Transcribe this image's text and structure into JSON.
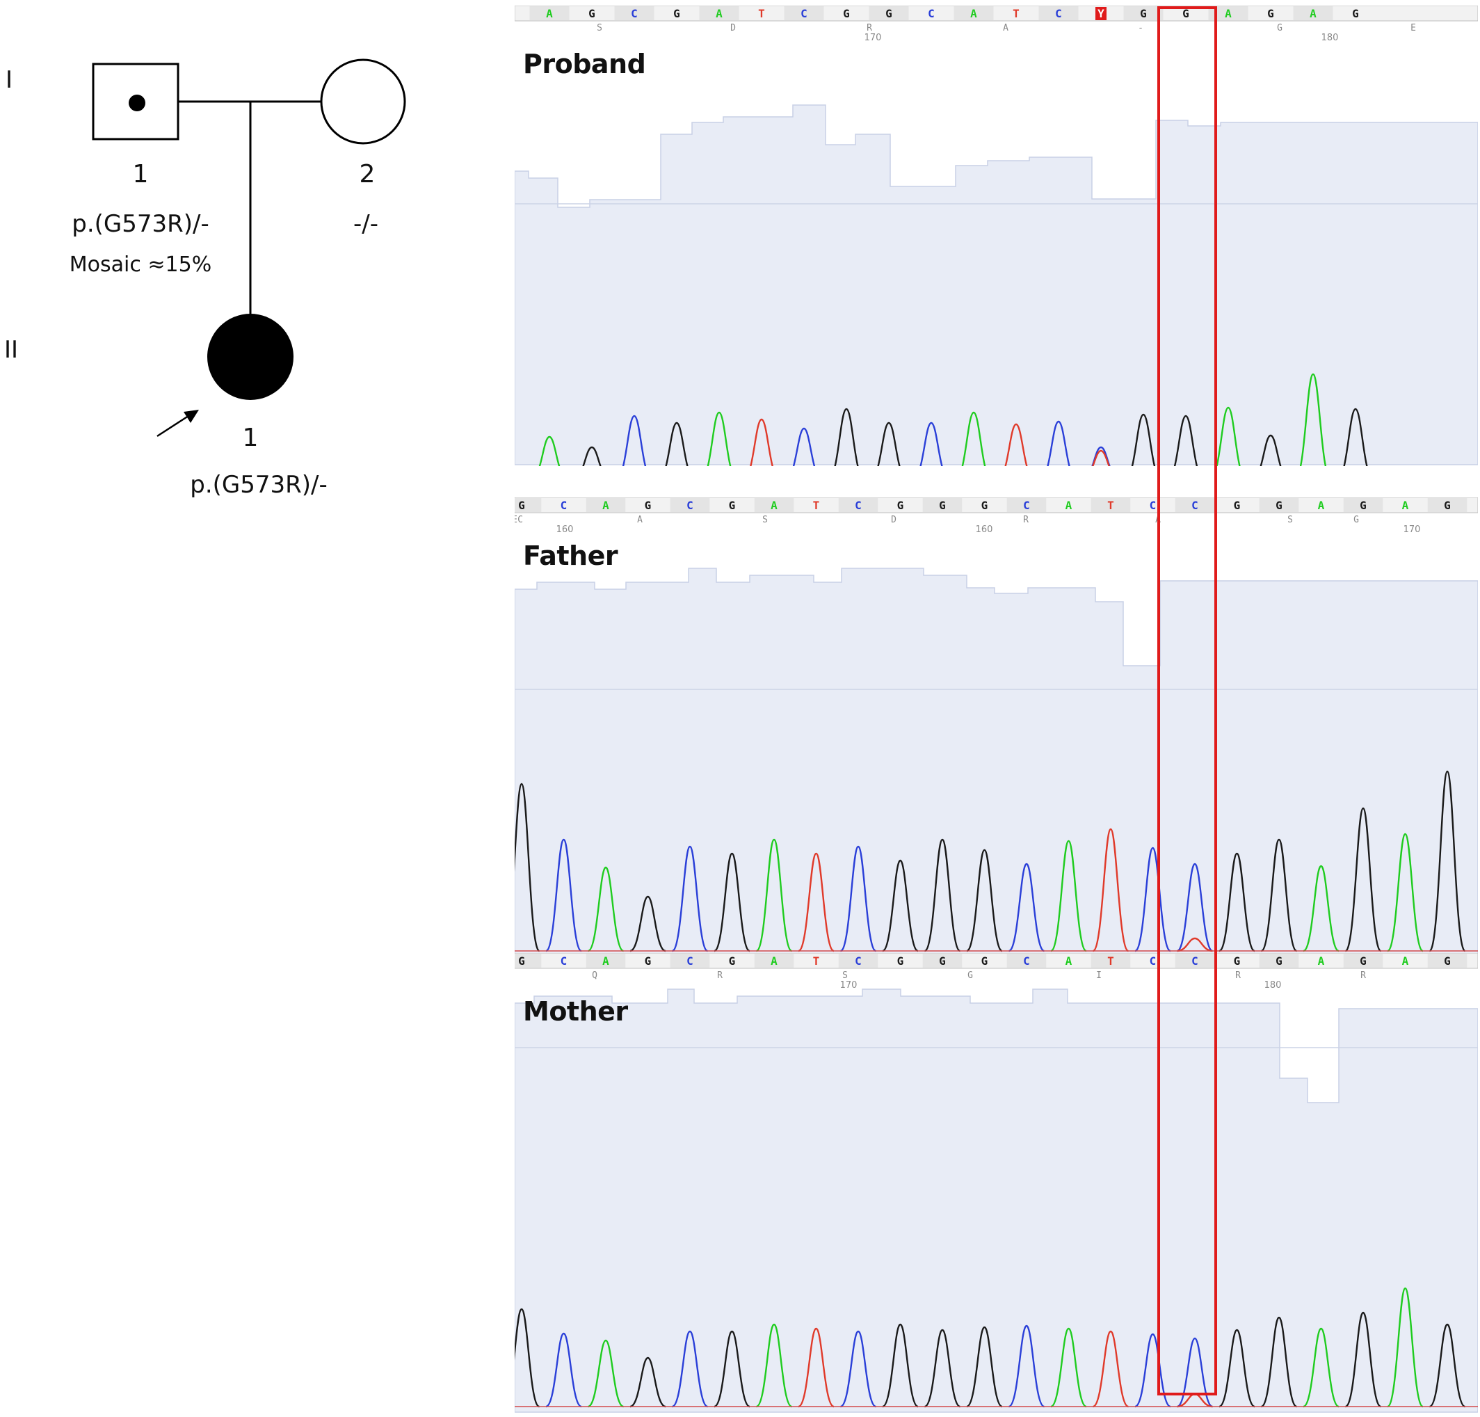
{
  "pedigree": {
    "generations": [
      "I",
      "II"
    ],
    "father": {
      "number": "1",
      "genotype": "p.(G573R)/-",
      "note": "Mosaic ≈15%"
    },
    "mother": {
      "number": "2",
      "genotype": "-/-"
    },
    "proband": {
      "number": "1",
      "genotype": "p.(G573R)/-"
    }
  },
  "traces": [
    {
      "title": "Proband",
      "bases": [
        "A",
        "G",
        "C",
        "G",
        "A",
        "T",
        "C",
        "G",
        "G",
        "C",
        "A",
        "T",
        "C",
        "Y",
        "G",
        "G",
        "A",
        "G",
        "A",
        "G"
      ],
      "amino_acids": [
        "S",
        "D",
        "R",
        "A",
        "-",
        "G",
        "E"
      ],
      "positions": [
        "170",
        "180"
      ]
    },
    {
      "title": "Father",
      "bases": [
        "G",
        "C",
        "A",
        "G",
        "C",
        "G",
        "A",
        "T",
        "C",
        "G",
        "G",
        "G",
        "C",
        "A",
        "T",
        "C",
        "C",
        "G",
        "G",
        "A",
        "G",
        "A",
        "G"
      ],
      "amino_acids": [
        "C",
        "A",
        "S",
        "D",
        "R",
        "A",
        "S",
        "G",
        "E"
      ],
      "positions": [
        "160",
        "160",
        "170"
      ]
    },
    {
      "title": "Mother",
      "bases": [
        "G",
        "C",
        "A",
        "G",
        "C",
        "G",
        "A",
        "T",
        "C",
        "G",
        "G",
        "G",
        "C",
        "A",
        "T",
        "C",
        "C",
        "G",
        "G",
        "A",
        "G",
        "A",
        "G"
      ],
      "amino_acids": [
        "Q",
        "R",
        "S",
        "G",
        "I",
        "R",
        "R"
      ],
      "positions": [
        "170",
        "180"
      ]
    }
  ],
  "colors": {
    "A": "#1fcc1f",
    "C": "#2a3fd8",
    "G": "#1a1a1a",
    "T": "#e03a2a",
    "highlight": "#e01b1b"
  }
}
